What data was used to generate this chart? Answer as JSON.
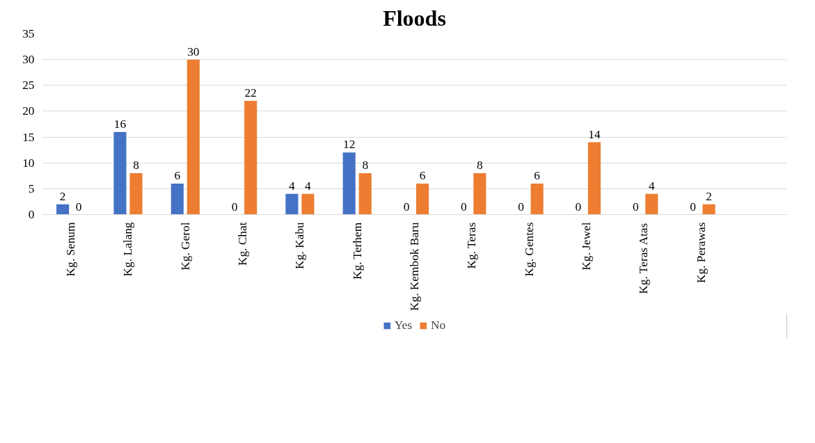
{
  "chart_data": {
    "type": "bar",
    "title": "Floods",
    "categories": [
      "Kg. Senum",
      "Kg. Lalang",
      "Kg. Gerol",
      "Kg. Chat",
      "Kg. Kabu",
      "Kg. Terhem",
      "Kg. Kembok Baru",
      "Kg. Teras",
      "Kg. Gentes",
      "Kg. Jewel",
      "Kg. Teras Atas",
      "Kg. Perawas"
    ],
    "series": [
      {
        "name": "Yes",
        "color": "#4472c4",
        "values": [
          2,
          16,
          6,
          0,
          4,
          12,
          0,
          0,
          0,
          0,
          0,
          0
        ]
      },
      {
        "name": "No",
        "color": "#ed7d31",
        "values": [
          0,
          8,
          30,
          22,
          4,
          8,
          6,
          8,
          6,
          14,
          4,
          2
        ]
      }
    ],
    "ylim": [
      0,
      35
    ],
    "yticks": [
      0,
      5,
      10,
      15,
      20,
      25,
      30,
      35
    ],
    "grid": "y",
    "legend": "bottom",
    "data_labels": true
  }
}
